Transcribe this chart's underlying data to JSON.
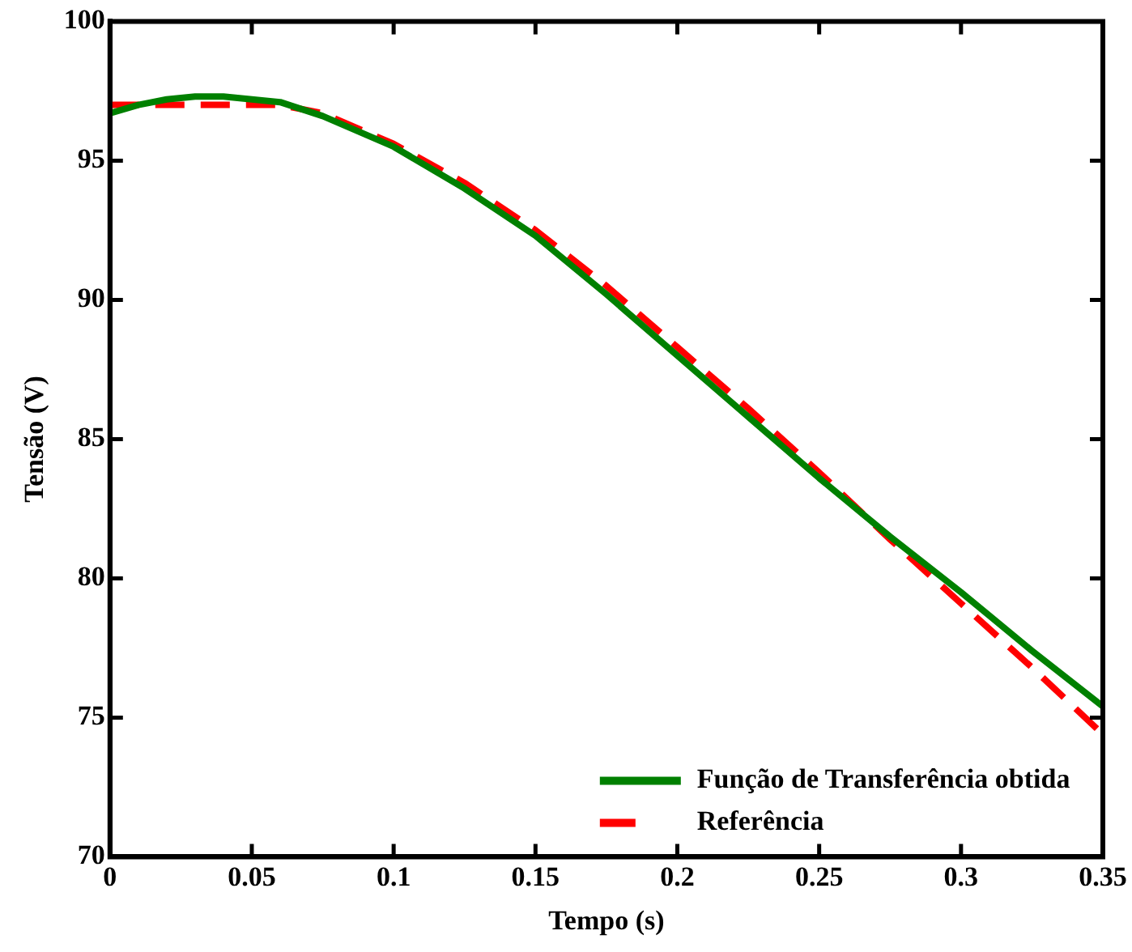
{
  "chart_data": {
    "type": "line",
    "xlabel": "Tempo (s)",
    "ylabel": "Tensão (V)",
    "xlim": [
      0,
      0.35
    ],
    "xticks": [
      0,
      0.05,
      0.1,
      0.15,
      0.2,
      0.25,
      0.3,
      0.35
    ],
    "ylim": [
      70,
      100
    ],
    "yticks": [
      70,
      75,
      80,
      85,
      90,
      95,
      100
    ],
    "grid": false,
    "legend": "bottom right",
    "marker": "none",
    "series": [
      {
        "name": "Função de Transferência obtida",
        "color": "#008000",
        "line_style": "solid",
        "x": [
          0,
          0.01,
          0.02,
          0.03,
          0.04,
          0.05,
          0.06,
          0.075,
          0.1,
          0.125,
          0.15,
          0.175,
          0.2,
          0.225,
          0.25,
          0.275,
          0.3,
          0.325,
          0.35
        ],
        "values": [
          96.7,
          97.0,
          97.2,
          97.3,
          97.3,
          97.2,
          97.1,
          96.6,
          95.5,
          94.0,
          92.3,
          90.2,
          88.0,
          85.8,
          83.6,
          81.5,
          79.5,
          77.4,
          75.4
        ]
      },
      {
        "name": "Referência",
        "color": "#ff0000",
        "line_style": "dashed",
        "x": [
          0,
          0.02,
          0.04,
          0.06,
          0.075,
          0.1,
          0.125,
          0.15,
          0.175,
          0.2,
          0.225,
          0.25,
          0.275,
          0.3,
          0.325,
          0.35
        ],
        "values": [
          97.0,
          97.0,
          97.0,
          97.0,
          96.7,
          95.6,
          94.2,
          92.5,
          90.5,
          88.3,
          86.1,
          83.8,
          81.4,
          79.1,
          76.8,
          74.4
        ]
      }
    ]
  }
}
